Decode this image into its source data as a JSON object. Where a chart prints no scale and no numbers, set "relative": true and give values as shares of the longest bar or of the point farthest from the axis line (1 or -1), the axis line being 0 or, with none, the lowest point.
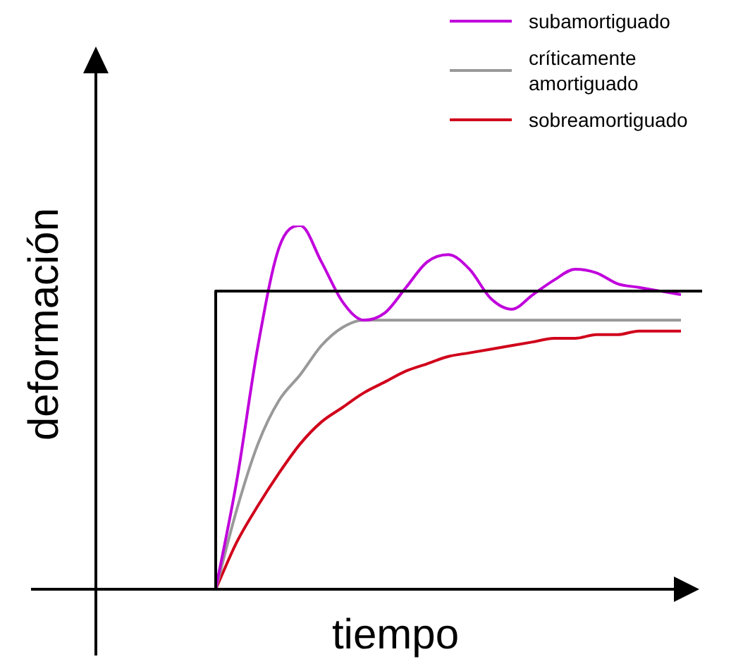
{
  "chart_data": {
    "type": "line",
    "relative": true,
    "xlabel": "tiempo",
    "ylabel": "deformación",
    "legend": "top right",
    "tick_labels": false,
    "categories": [
      null,
      null,
      null,
      null,
      null,
      null,
      null,
      null,
      null,
      null,
      null,
      null,
      null,
      null,
      null,
      null,
      null,
      null,
      null,
      null,
      null,
      null,
      null,
      null,
      null,
      null,
      null,
      null,
      null,
      null
    ],
    "series": [
      {
        "type": "step",
        "color": "#000000",
        "values": [
          null,
          null,
          null,
          null,
          null,
          0,
          0.82,
          0.82,
          0.82,
          0.82,
          0.82,
          0.82,
          0.82,
          0.82,
          0.82,
          0.82,
          0.82,
          0.82,
          0.82,
          0.82,
          0.82,
          0.82,
          0.82,
          0.82,
          0.82,
          0.82,
          0.82,
          0.82,
          0.82,
          0.82
        ]
      },
      {
        "name": "subamortiguado",
        "color": "#c000dc",
        "values": [
          null,
          null,
          null,
          null,
          null,
          null,
          0,
          0.3,
          0.67,
          0.94,
          1,
          0.9,
          0.79,
          0.74,
          0.76,
          0.83,
          0.9,
          0.92,
          0.88,
          0.8,
          0.77,
          0.81,
          0.85,
          0.88,
          0.87,
          0.84,
          0.83,
          0.82,
          0.81,
          null
        ]
      },
      {
        "name": "críticamente amortiguado",
        "color": "#999999",
        "values": [
          null,
          null,
          null,
          null,
          null,
          null,
          0,
          0.22,
          0.4,
          0.52,
          0.59,
          0.67,
          0.72,
          0.74,
          0.74,
          0.74,
          0.74,
          0.74,
          0.74,
          0.74,
          0.74,
          0.74,
          0.74,
          0.74,
          0.74,
          0.74,
          0.74,
          0.74,
          0.74,
          null
        ]
      },
      {
        "name": "sobreamortiguado",
        "color": "#d0021b",
        "values": [
          null,
          null,
          null,
          null,
          null,
          null,
          0,
          0.13,
          0.23,
          0.32,
          0.4,
          0.46,
          0.5,
          0.54,
          0.57,
          0.6,
          0.62,
          0.64,
          0.65,
          0.66,
          0.67,
          0.68,
          0.69,
          0.69,
          0.7,
          0.7,
          0.71,
          0.71,
          0.71,
          null
        ]
      }
    ]
  }
}
